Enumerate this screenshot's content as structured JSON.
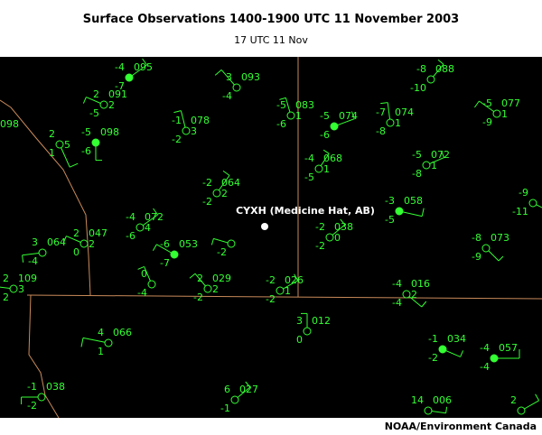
{
  "header": {
    "title": "Surface Observations 1400-1900 UTC 11 November 2003",
    "subtitle": "17 UTC 11 Nov"
  },
  "map": {
    "station_label": "CYXH (Medicine Hat, AB)",
    "credit": "NOAA/Environment Canada",
    "stations": [
      {
        "temp": "-4",
        "pressure": "095",
        "dewpoint": "-7",
        "filled": true
      },
      {
        "temp": "3",
        "pressure": "093",
        "dewpoint": "-4"
      },
      {
        "temp": "2",
        "pressure": "091",
        "dewpoint": "-5",
        "extra": "2"
      },
      {
        "temp": "-1",
        "pressure": "078",
        "dewpoint": "-2",
        "extra": "3"
      },
      {
        "pressure": "098"
      },
      {
        "temp": "2",
        "dewpoint": "1",
        "extra": "5"
      },
      {
        "temp": "-5",
        "pressure": "098",
        "dewpoint": "-6",
        "filled": true
      },
      {
        "temp": "-5",
        "pressure": "083",
        "dewpoint": "-6",
        "extra": "1"
      },
      {
        "temp": "-5",
        "pressure": "074",
        "dewpoint": "-6",
        "filled": true
      },
      {
        "temp": "-7",
        "pressure": "074",
        "dewpoint": "-8",
        "extra": "1"
      },
      {
        "temp": "-8",
        "pressure": "088",
        "dewpoint": "-10"
      },
      {
        "temp": "-5",
        "pressure": "077",
        "dewpoint": "-9",
        "extra": "1"
      },
      {
        "temp": "-4",
        "pressure": "068",
        "dewpoint": "-5",
        "extra": "1"
      },
      {
        "temp": "-5",
        "pressure": "072",
        "dewpoint": "-8",
        "extra": "1"
      },
      {
        "temp": "-2",
        "pressure": "064",
        "dewpoint": "-2",
        "extra": "2"
      },
      {
        "temp": "-3",
        "pressure": "058",
        "dewpoint": "-5",
        "filled": true
      },
      {
        "temp": "-9",
        "dewpoint": "-11"
      },
      {
        "temp": "-4",
        "pressure": "072",
        "dewpoint": "-6",
        "extra": "4"
      },
      {
        "temp": "2",
        "pressure": "047",
        "dewpoint": "0",
        "extra": "2"
      },
      {
        "temp": "3",
        "pressure": "064",
        "dewpoint": "-4"
      },
      {
        "temp": "-6",
        "pressure": "053",
        "dewpoint": "-7",
        "filled": true
      },
      {
        "dewpoint": "-2"
      },
      {
        "temp": "-2",
        "pressure": "038",
        "dewpoint": "-2",
        "extra": "0"
      },
      {
        "temp": "-8",
        "pressure": "073",
        "dewpoint": "-9"
      },
      {
        "temp": "0",
        "dewpoint": "-4"
      },
      {
        "temp": "2",
        "pressure": "029",
        "dewpoint": "-2",
        "extra": "2"
      },
      {
        "temp": "-2",
        "pressure": "026",
        "dewpoint": "-2",
        "extra": "1"
      },
      {
        "temp": "2",
        "pressure": "109",
        "dewpoint": "2",
        "extra": "3"
      },
      {
        "temp": "-4",
        "pressure": "016",
        "dewpoint": "-4",
        "extra": "2"
      },
      {
        "temp": "4",
        "pressure": "066",
        "dewpoint": "1"
      },
      {
        "temp": "3",
        "pressure": "012",
        "dewpoint": "0"
      },
      {
        "temp": "-1",
        "pressure": "034",
        "dewpoint": "-2",
        "filled": true
      },
      {
        "temp": "-4",
        "pressure": "057",
        "dewpoint": "-4",
        "filled": true
      },
      {
        "temp": "-1",
        "pressure": "038",
        "dewpoint": "-2"
      },
      {
        "temp": "6",
        "pressure": "027",
        "dewpoint": "-1"
      },
      {
        "temp": "14",
        "pressure": "006"
      },
      {
        "temp": "2"
      }
    ]
  }
}
